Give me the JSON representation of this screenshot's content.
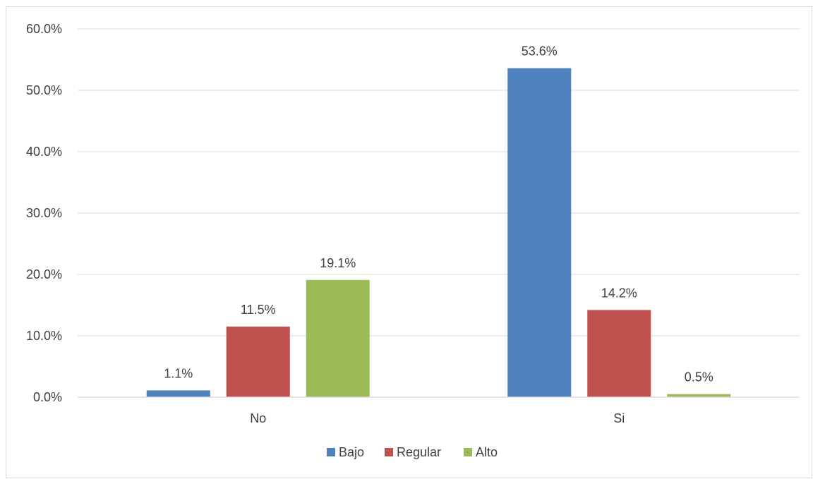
{
  "chart_data": {
    "type": "bar",
    "title": "",
    "xlabel": "",
    "ylabel": "",
    "categories": [
      "No",
      "Si"
    ],
    "series": [
      {
        "name": "Bajo",
        "values": [
          1.1,
          53.6
        ],
        "color": "#4f81bd"
      },
      {
        "name": "Regular",
        "values": [
          11.5,
          14.2
        ],
        "color": "#c0504d"
      },
      {
        "name": "Alto",
        "values": [
          19.1,
          0.5
        ],
        "color": "#9bbb59"
      }
    ],
    "ylim": [
      0,
      60
    ],
    "yticks": [
      0,
      10,
      20,
      30,
      40,
      50,
      60
    ],
    "ytick_labels": [
      "0.0%",
      "10.0%",
      "20.0%",
      "30.0%",
      "40.0%",
      "50.0%",
      "60.0%"
    ],
    "data_labels": [
      [
        "1.1%",
        "53.6%"
      ],
      [
        "11.5%",
        "14.2%"
      ],
      [
        "19.1%",
        "0.5%"
      ]
    ],
    "grid": true,
    "legend_position": "bottom",
    "gridline_color": "#d9d9d9"
  }
}
